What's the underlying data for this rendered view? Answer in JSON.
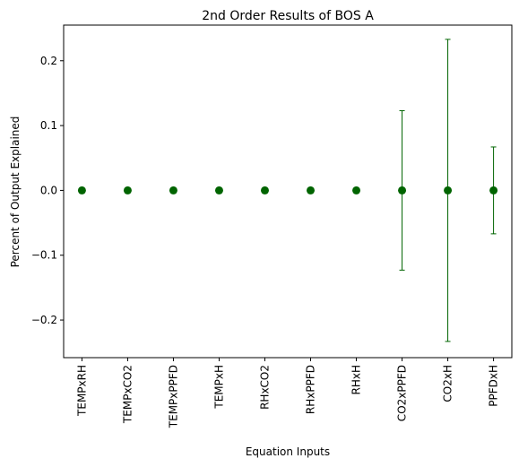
{
  "chart_data": {
    "type": "scatter",
    "title": "2nd Order Results of BOS A",
    "xlabel": "Equation Inputs",
    "ylabel": "Percent of Output Explained",
    "categories": [
      "TEMPxRH",
      "TEMPxCO2",
      "TEMPxPPFD",
      "TEMPxH",
      "RHxCO2",
      "RHxPPFD",
      "RHxH",
      "CO2xPPFD",
      "CO2xH",
      "PPFDxH"
    ],
    "values": [
      0,
      0,
      0,
      0,
      0,
      0,
      0,
      0,
      0,
      0
    ],
    "errors": [
      0,
      0,
      0,
      0,
      0,
      0,
      0,
      0.123,
      0.233,
      0.067
    ],
    "ylim": [
      -0.258,
      0.255
    ],
    "yticks": [
      -0.2,
      -0.1,
      0.0,
      0.1,
      0.2
    ],
    "ytick_labels": [
      "−0.2",
      "−0.1",
      "0.0",
      "0.1",
      "0.2"
    ],
    "grid": false,
    "color": "#006400"
  }
}
